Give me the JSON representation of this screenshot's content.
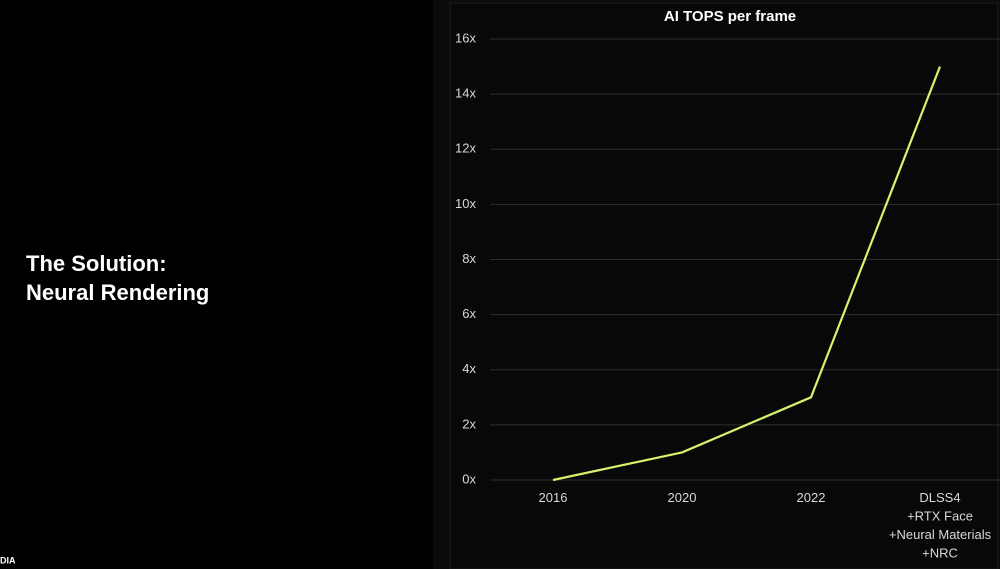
{
  "slide": {
    "heading_lines": [
      "The Solution:",
      "Neural Rendering"
    ],
    "footer_fragment": "DIA"
  },
  "chart_data": {
    "type": "line",
    "title": "AI TOPS per frame",
    "categories": [
      "2016",
      "2020",
      "2022",
      "DLSS4\n+RTX Face\n+Neural Materials\n+NRC"
    ],
    "series": [
      {
        "name": "AI TOPS per frame",
        "color": "#d5f26e",
        "values": [
          0,
          1,
          3,
          15
        ]
      }
    ],
    "ylim": [
      0,
      16
    ],
    "yticks": [
      {
        "value": 0,
        "label": "0x"
      },
      {
        "value": 2,
        "label": "2x"
      },
      {
        "value": 4,
        "label": "4x"
      },
      {
        "value": 6,
        "label": "6x"
      },
      {
        "value": 8,
        "label": "8x"
      },
      {
        "value": 10,
        "label": "10x"
      },
      {
        "value": 12,
        "label": "12x"
      },
      {
        "value": 14,
        "label": "14x"
      },
      {
        "value": 16,
        "label": "16x"
      }
    ],
    "grid": true
  }
}
